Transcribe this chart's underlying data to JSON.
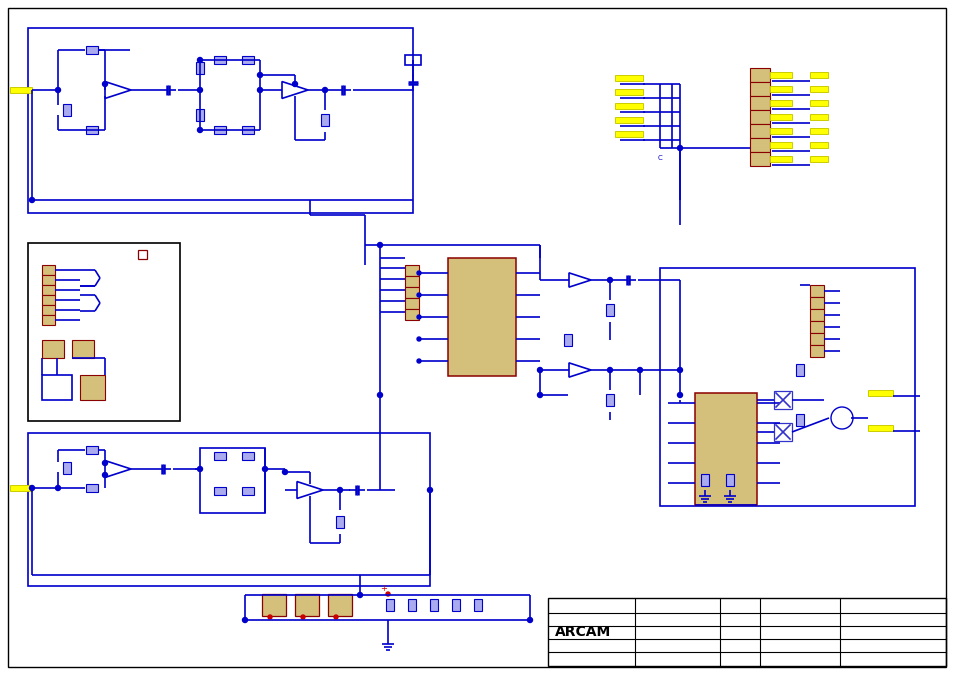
{
  "bg_color": "#ffffff",
  "border_color": "#000000",
  "line_color": "#0000cc",
  "yellow_color": "#ffff00",
  "dark_yellow": "#cccc00",
  "red_color": "#cc0000",
  "dark_red": "#8b0000",
  "tan_color": "#d4c07a",
  "arcam_text": "ARCAM"
}
